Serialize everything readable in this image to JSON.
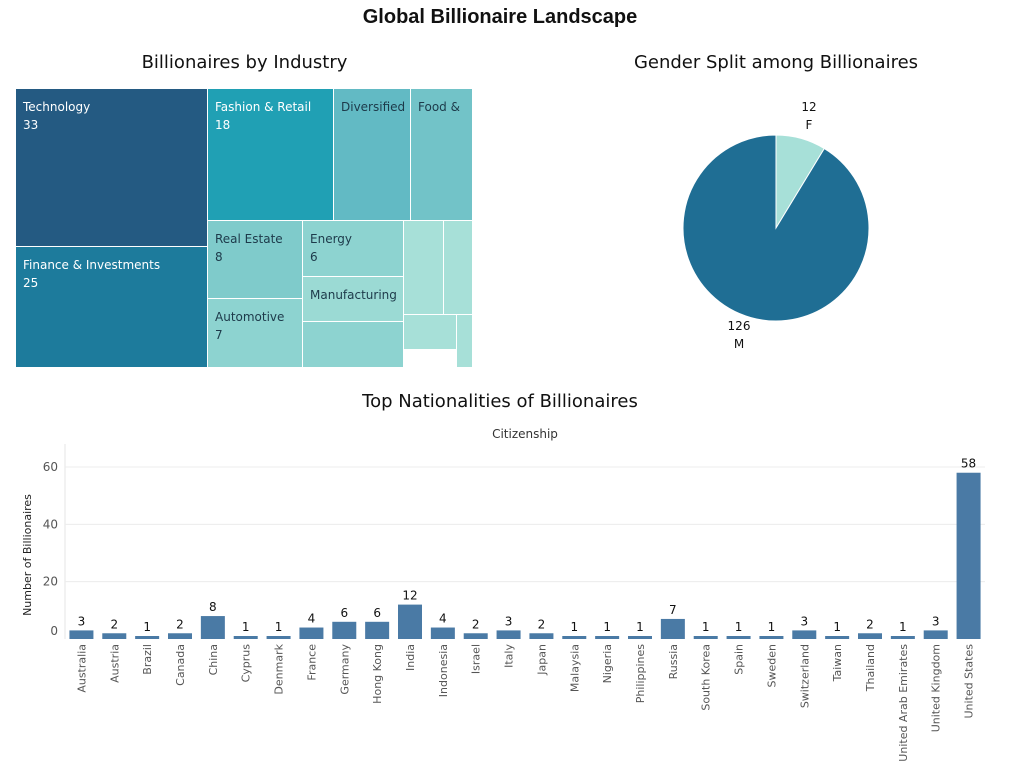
{
  "dashboard_title": "Global Billionaire Landscape",
  "colors": {
    "treemap_palette": [
      "#245a82",
      "#1d7b9c",
      "#20a0b4",
      "#62bac4",
      "#72c3c8",
      "#7fcbcb",
      "#8dd3d0",
      "#9bdad4",
      "#a7e0d8"
    ],
    "pie_male": "#1f6e94",
    "pie_female": "#a7e0d8",
    "bar": "#4a7aa5",
    "grid": "#ececec"
  },
  "chart_data": [
    {
      "type": "treemap",
      "title": "Billionaires by Industry",
      "categories": [
        "Technology",
        "Finance & Investments",
        "Fashion & Retail",
        "Diversified",
        "Food &",
        "Real Estate",
        "Energy",
        "Automotive",
        "Manufacturing",
        "",
        "",
        "",
        "",
        ""
      ],
      "values": [
        33,
        25,
        18,
        11,
        9,
        8,
        6,
        7,
        5,
        4,
        3,
        2,
        2,
        1
      ],
      "labels_shown": [
        "33",
        "25",
        "18",
        "",
        "",
        "8",
        "6",
        "7",
        "",
        "",
        "",
        "",
        "",
        ""
      ]
    },
    {
      "type": "pie",
      "title": "Gender Split among Billionaires",
      "categories": [
        "F",
        "M"
      ],
      "values": [
        12,
        126
      ]
    },
    {
      "type": "bar",
      "title": "Top Nationalities of Billionaires",
      "column_header": "Citizenship",
      "ylabel": "Number of Billionaires",
      "ylim": [
        0,
        60
      ],
      "yticks": [
        0,
        20,
        40,
        60
      ],
      "grid": true,
      "categories": [
        "Australia",
        "Austria",
        "Brazil",
        "Canada",
        "China",
        "Cyprus",
        "Denmark",
        "France",
        "Germany",
        "Hong Kong",
        "India",
        "Indonesia",
        "Israel",
        "Italy",
        "Japan",
        "Malaysia",
        "Nigeria",
        "Philippines",
        "Russia",
        "South Korea",
        "Spain",
        "Sweden",
        "Switzerland",
        "Taiwan",
        "Thailand",
        "United Arab Emirates",
        "United Kingdom",
        "United States"
      ],
      "values": [
        3,
        2,
        1,
        2,
        8,
        1,
        1,
        4,
        6,
        6,
        12,
        4,
        2,
        3,
        2,
        1,
        1,
        1,
        7,
        1,
        1,
        1,
        3,
        1,
        2,
        1,
        3,
        58
      ]
    }
  ]
}
